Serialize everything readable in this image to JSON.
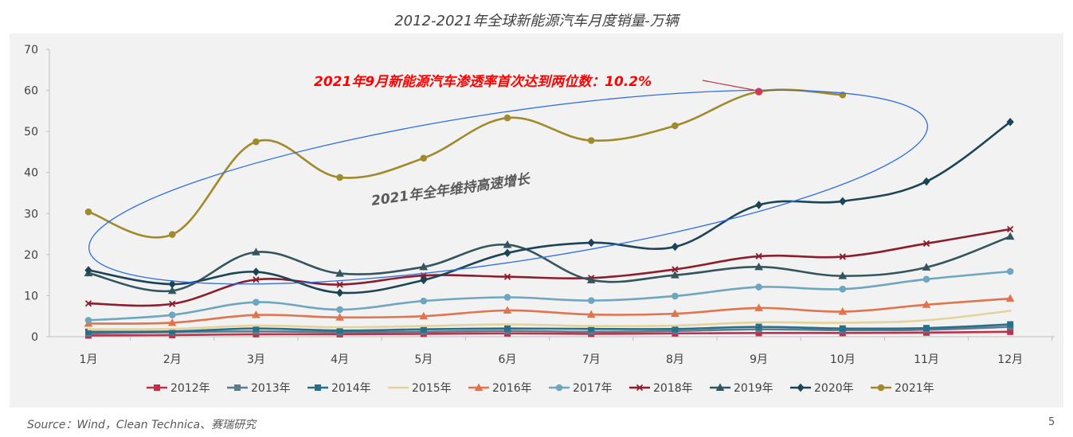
{
  "page": {
    "title": "2012-2021年全球新能源汽车月度销量-万辆",
    "source": "Source：Wind，Clean Technica、赛瑞研究",
    "page_number": "5"
  },
  "chart_data": {
    "type": "line",
    "title": "2012-2021年全球新能源汽车月度销量-万辆",
    "xlabel": "",
    "ylabel": "",
    "ylim": [
      0,
      70
    ],
    "yticks": [
      0,
      10,
      20,
      30,
      40,
      50,
      60,
      70
    ],
    "grid": false,
    "legend_position": "bottom",
    "categories": [
      "1月",
      "2月",
      "3月",
      "4月",
      "5月",
      "6月",
      "7月",
      "8月",
      "9月",
      "10月",
      "11月",
      "12月"
    ],
    "series": [
      {
        "name": "2012年",
        "color": "#c0304b",
        "marker": "square",
        "values": [
          0.3,
          0.4,
          0.6,
          0.6,
          0.7,
          0.8,
          0.7,
          0.8,
          0.9,
          0.9,
          1.0,
          1.2
        ]
      },
      {
        "name": "2013年",
        "color": "#5b7b8e",
        "marker": "square",
        "values": [
          0.8,
          1.1,
          1.3,
          1.1,
          1.2,
          1.4,
          1.2,
          1.4,
          1.8,
          1.6,
          1.7,
          2.4
        ]
      },
      {
        "name": "2014年",
        "color": "#2a6f89",
        "marker": "square",
        "values": [
          1.2,
          1.3,
          2.0,
          1.5,
          1.8,
          2.0,
          1.9,
          1.9,
          2.4,
          2.0,
          2.1,
          3.0
        ]
      },
      {
        "name": "2015年",
        "color": "#e4d39a",
        "marker": "none",
        "values": [
          1.8,
          1.9,
          2.7,
          2.3,
          2.6,
          3.0,
          2.6,
          2.7,
          3.5,
          3.4,
          4.0,
          6.3
        ]
      },
      {
        "name": "2016年",
        "color": "#e0744f",
        "marker": "triangle",
        "values": [
          3.2,
          3.4,
          5.3,
          4.7,
          5.0,
          6.4,
          5.4,
          5.6,
          7.0,
          6.1,
          7.8,
          9.3
        ]
      },
      {
        "name": "2017年",
        "color": "#6ea6c0",
        "marker": "circle",
        "values": [
          4.0,
          5.3,
          8.4,
          6.6,
          8.7,
          9.6,
          8.8,
          9.9,
          12.1,
          11.6,
          14.0,
          15.9
        ]
      },
      {
        "name": "2018年",
        "color": "#8b1d2c",
        "marker": "cross",
        "values": [
          8.1,
          8.0,
          13.9,
          12.7,
          14.9,
          14.6,
          14.3,
          16.4,
          19.6,
          19.5,
          22.7,
          26.2
        ]
      },
      {
        "name": "2019年",
        "color": "#34545e",
        "marker": "triangle",
        "values": [
          15.5,
          11.2,
          20.6,
          15.4,
          17.0,
          22.4,
          13.8,
          15.0,
          17.0,
          14.8,
          16.9,
          24.4
        ]
      },
      {
        "name": "2020年",
        "color": "#1b4457",
        "marker": "diamond",
        "values": [
          16.2,
          12.8,
          15.8,
          10.7,
          13.8,
          20.4,
          22.9,
          21.9,
          32.1,
          33.0,
          37.8,
          52.3
        ]
      },
      {
        "name": "2021年",
        "color": "#a08a2b",
        "marker": "circle",
        "values": [
          30.4,
          24.9,
          47.5,
          38.8,
          43.5,
          53.3,
          47.8,
          51.4,
          59.7,
          58.9,
          null,
          null
        ]
      }
    ],
    "annotations": {
      "highlight": "2021年9月新能源汽车渗透率首次达到两位数：10.2%",
      "ellipse_label": "2021年全年维持高速增长"
    }
  }
}
